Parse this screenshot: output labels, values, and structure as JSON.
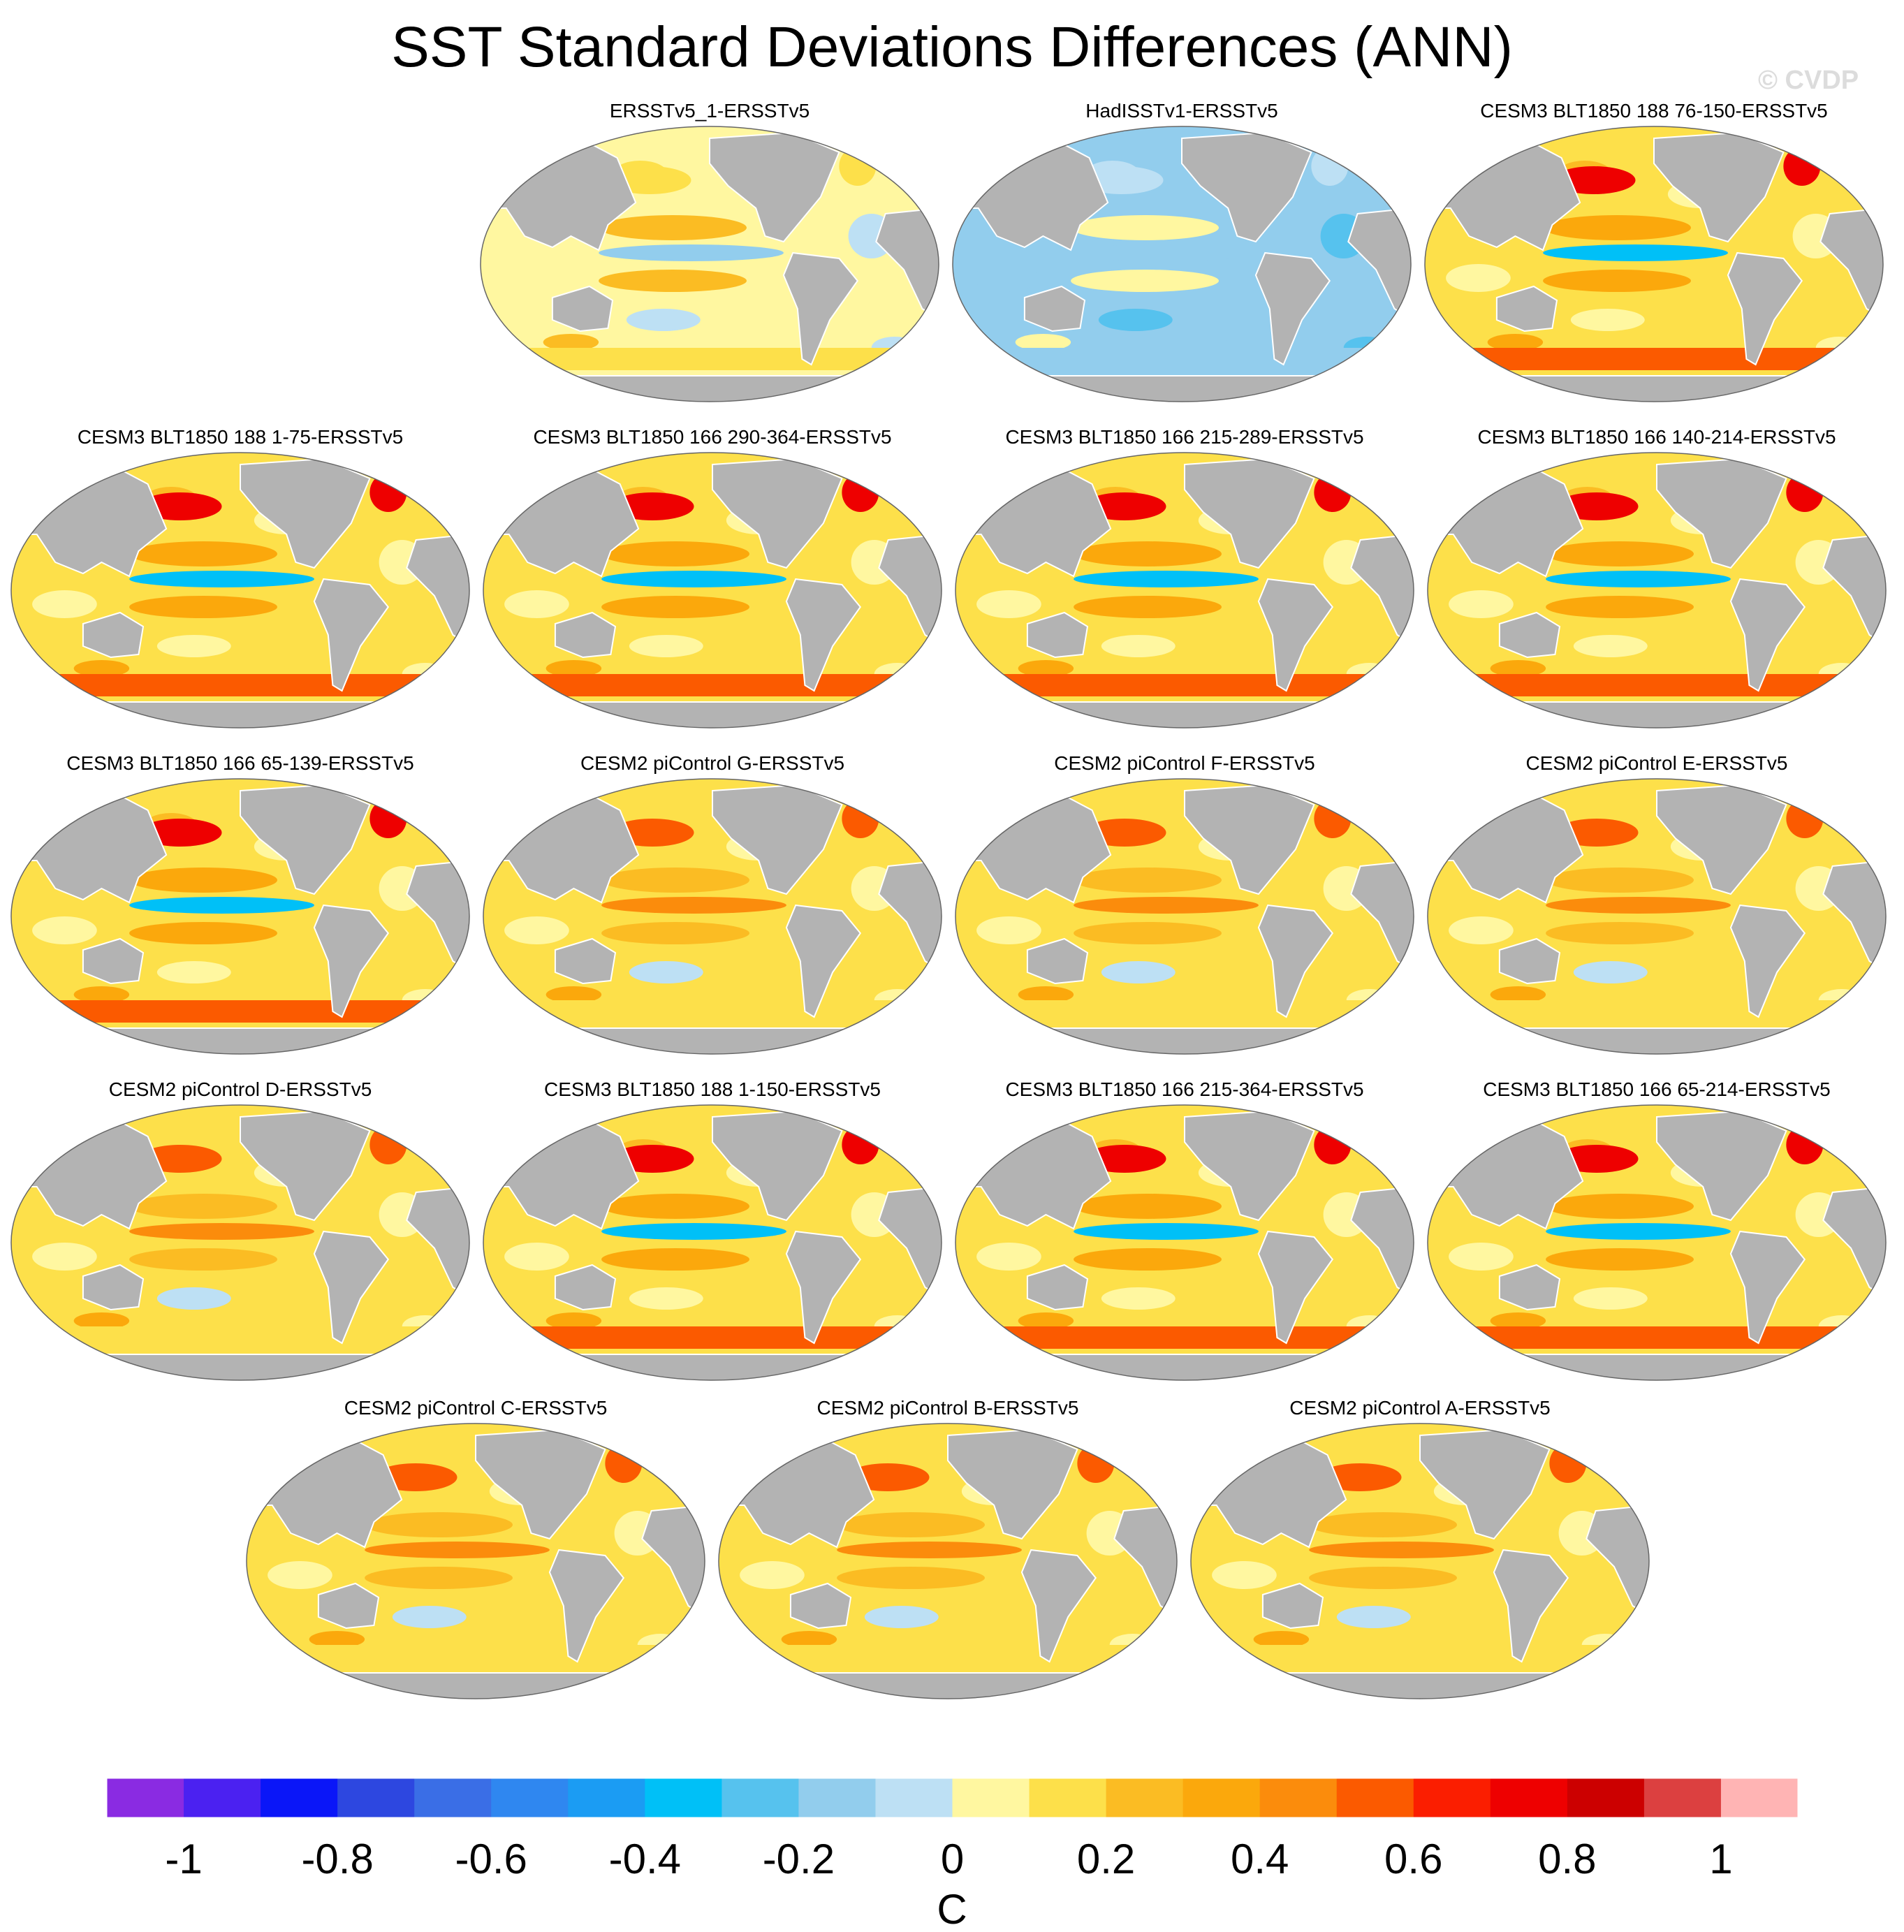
{
  "title": "SST Standard Deviations Differences (ANN)",
  "watermark": "© CVDP",
  "panels": [
    {
      "label": "ERSSTv5_1-ERSSTv5",
      "pattern": "obs"
    },
    {
      "label": "HadISSTv1-ERSSTv5",
      "pattern": "hadisst"
    },
    {
      "label": "CESM3 BLT1850 188 76-150-ERSSTv5",
      "pattern": "cesm3"
    },
    {
      "label": "CESM3 BLT1850 188 1-75-ERSSTv5",
      "pattern": "cesm3"
    },
    {
      "label": "CESM3 BLT1850 166 290-364-ERSSTv5",
      "pattern": "cesm3"
    },
    {
      "label": "CESM3 BLT1850 166 215-289-ERSSTv5",
      "pattern": "cesm3"
    },
    {
      "label": "CESM3 BLT1850 166 140-214-ERSSTv5",
      "pattern": "cesm3"
    },
    {
      "label": "CESM3 BLT1850 166 65-139-ERSSTv5",
      "pattern": "cesm3"
    },
    {
      "label": "CESM2 piControl G-ERSSTv5",
      "pattern": "cesm2"
    },
    {
      "label": "CESM2 piControl F-ERSSTv5",
      "pattern": "cesm2"
    },
    {
      "label": "CESM2 piControl E-ERSSTv5",
      "pattern": "cesm2"
    },
    {
      "label": "CESM2 piControl D-ERSSTv5",
      "pattern": "cesm2"
    },
    {
      "label": "CESM3 BLT1850 188 1-150-ERSSTv5",
      "pattern": "cesm3"
    },
    {
      "label": "CESM3 BLT1850 166 215-364-ERSSTv5",
      "pattern": "cesm3"
    },
    {
      "label": "CESM3 BLT1850 166 65-214-ERSSTv5",
      "pattern": "cesm3"
    },
    {
      "label": "CESM2 piControl C-ERSSTv5",
      "pattern": "cesm2"
    },
    {
      "label": "CESM2 piControl B-ERSSTv5",
      "pattern": "cesm2"
    },
    {
      "label": "CESM2 piControl A-ERSSTv5",
      "pattern": "cesm2"
    }
  ],
  "chart_data": {
    "type": "heatmap",
    "title": "SST Standard Deviations Differences (ANN)",
    "units": "C",
    "colorbar": {
      "label": "C",
      "levels": [
        -1.1,
        -1.0,
        -0.9,
        -0.8,
        -0.7,
        -0.6,
        -0.5,
        -0.4,
        -0.3,
        -0.2,
        -0.1,
        0,
        0.1,
        0.2,
        0.3,
        0.4,
        0.5,
        0.6,
        0.7,
        0.8,
        0.9,
        1.0,
        1.1
      ],
      "colors": [
        "#8a2be2",
        "#4b21f1",
        "#0a16f8",
        "#2d47e0",
        "#3a6ee6",
        "#2f87f0",
        "#1b9cf3",
        "#00c0f7",
        "#56c2ee",
        "#92cded",
        "#bde0f4",
        "#fff7a0",
        "#fde04a",
        "#fbbc23",
        "#fba80c",
        "#fb8c0c",
        "#fb5a00",
        "#fb1e00",
        "#ee0000",
        "#cc0000",
        "#dc4040",
        "#ffb4b4"
      ],
      "tick_labels": [
        "-1",
        "-0.8",
        "-0.6",
        "-0.4",
        "-0.2",
        "0",
        "0.2",
        "0.4",
        "0.6",
        "0.8",
        "1"
      ],
      "tick_values": [
        -1.0,
        -0.8,
        -0.6,
        -0.4,
        -0.2,
        0,
        0.2,
        0.4,
        0.6,
        0.8,
        1.0
      ]
    },
    "panel_values": {
      "obs": {
        "equatorial_pacific": -0.2,
        "north_pacific": 0.1,
        "southern_ocean": 0.1,
        "background": 0.05
      },
      "hadisst": {
        "equatorial_pacific": -0.2,
        "north_pacific": -0.1,
        "southern_ocean": -0.2,
        "background": -0.15
      },
      "cesm3": {
        "equatorial_pacific": -0.4,
        "north_pacific": 0.7,
        "southern_ocean": 0.5,
        "background": 0.15
      },
      "cesm2": {
        "equatorial_pacific": 0.4,
        "north_pacific": 0.5,
        "southern_ocean": 0.15,
        "background": 0.1
      }
    }
  }
}
